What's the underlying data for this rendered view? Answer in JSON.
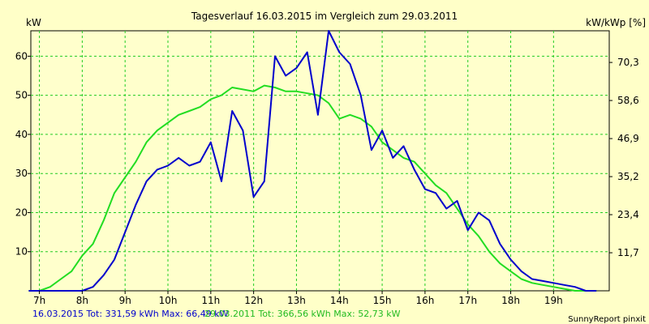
{
  "chart_data": {
    "type": "line",
    "title": "Tagesverlauf 16.03.2015 im Vergleich zum 29.03.2011",
    "ylabel_left": "kW",
    "ylabel_right": "kW/kWp [%]",
    "xlim": [
      6.8,
      20.3
    ],
    "ylim": [
      0,
      66.5
    ],
    "x_ticks": [
      {
        "value": 7,
        "label": "7h"
      },
      {
        "value": 8,
        "label": "8h"
      },
      {
        "value": 9,
        "label": "9h"
      },
      {
        "value": 10,
        "label": "10h"
      },
      {
        "value": 11,
        "label": "11h"
      },
      {
        "value": 12,
        "label": "12h"
      },
      {
        "value": 13,
        "label": "13h"
      },
      {
        "value": 14,
        "label": "14h"
      },
      {
        "value": 15,
        "label": "15h"
      },
      {
        "value": 16,
        "label": "16h"
      },
      {
        "value": 17,
        "label": "17h"
      },
      {
        "value": 18,
        "label": "18h"
      },
      {
        "value": 19,
        "label": "19h"
      }
    ],
    "y_ticks_left": [
      {
        "value": 10,
        "label": "10"
      },
      {
        "value": 20,
        "label": "20"
      },
      {
        "value": 30,
        "label": "30"
      },
      {
        "value": 40,
        "label": "40"
      },
      {
        "value": 50,
        "label": "50"
      },
      {
        "value": 60,
        "label": "60"
      }
    ],
    "y_ticks_right": [
      {
        "value": 9.73,
        "label": "11,7"
      },
      {
        "value": 19.47,
        "label": "23,4"
      },
      {
        "value": 29.2,
        "label": "35,2"
      },
      {
        "value": 38.93,
        "label": "46,9"
      },
      {
        "value": 48.67,
        "label": "58,6"
      },
      {
        "value": 58.4,
        "label": "70,3"
      }
    ],
    "grid": true,
    "series": [
      {
        "name": "16.03.2015",
        "color": "#0000cc",
        "x": [
          6.75,
          7.5,
          7.75,
          8,
          8.25,
          8.5,
          8.75,
          9,
          9.25,
          9.5,
          9.75,
          10,
          10.25,
          10.5,
          10.75,
          11,
          11.25,
          11.5,
          11.75,
          12,
          12.25,
          12.5,
          12.75,
          13,
          13.25,
          13.5,
          13.75,
          14,
          14.25,
          14.5,
          14.75,
          15,
          15.25,
          15.5,
          15.75,
          16,
          16.25,
          16.5,
          16.75,
          17,
          17.25,
          17.5,
          17.75,
          18,
          18.25,
          18.5,
          18.75,
          19,
          19.25,
          19.5,
          19.75,
          20
        ],
        "y": [
          0,
          0,
          0,
          0,
          1,
          4,
          8,
          15,
          22,
          28,
          31,
          32,
          34,
          32,
          33,
          38,
          28,
          46,
          41,
          24,
          28,
          60,
          55,
          57,
          61,
          45,
          66.5,
          61,
          58,
          50,
          36,
          41,
          34,
          37,
          31,
          26,
          25,
          21,
          23,
          15.5,
          20,
          18,
          12,
          8,
          5,
          3,
          2.5,
          2,
          1.5,
          1,
          0,
          0
        ]
      },
      {
        "name": "29.03.2011",
        "color": "#22dd22",
        "x": [
          6.75,
          7,
          7.25,
          7.5,
          7.75,
          8,
          8.25,
          8.5,
          8.75,
          9,
          9.25,
          9.5,
          9.75,
          10,
          10.25,
          10.5,
          10.75,
          11,
          11.25,
          11.5,
          11.75,
          12,
          12.25,
          12.5,
          12.75,
          13,
          13.25,
          13.5,
          13.75,
          14,
          14.25,
          14.5,
          14.75,
          15,
          15.25,
          15.5,
          15.75,
          16,
          16.25,
          16.5,
          16.75,
          17,
          17.25,
          17.5,
          17.75,
          18,
          18.25,
          18.5,
          18.75,
          19,
          19.25,
          19.5,
          19.75,
          20
        ],
        "y": [
          0,
          0,
          1,
          3,
          5,
          9,
          12,
          18,
          25,
          29,
          33,
          38,
          41,
          43,
          45,
          46,
          47,
          49,
          50,
          52,
          51.5,
          51,
          52.5,
          52,
          51,
          51,
          50.5,
          50,
          48,
          44,
          45,
          44,
          42,
          38,
          36,
          34,
          33,
          30,
          27,
          25,
          21,
          17,
          14,
          10,
          7,
          5,
          3,
          2,
          1.5,
          1,
          0.5,
          0,
          0,
          0
        ]
      }
    ],
    "footer": {
      "series1_text": "16.03.2015 Tot: 331,59 kWh Max: 66,49 kW",
      "series2_text": "29.03.2011 Tot: 366,56 kWh Max: 52,73 kW",
      "credit": "SunnyReport pinxit"
    },
    "colors": {
      "background": "#ffffc8",
      "plot_background": "#ffffcc",
      "grid": "#22cc22",
      "axis": "#000000"
    }
  }
}
